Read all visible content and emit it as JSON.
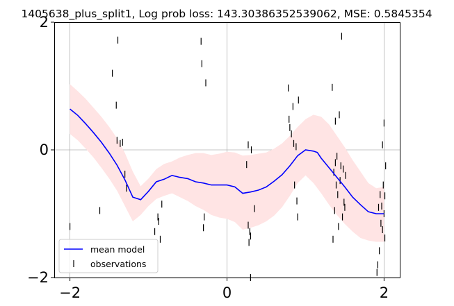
{
  "chart_data": {
    "type": "line",
    "title": "1405638_plus_split1, Log prob loss: 143.30386352539062, MSE: 0.5845354",
    "xlabel": "",
    "ylabel": "",
    "xlim": [
      -2.2,
      2.2
    ],
    "ylim": [
      -2,
      2
    ],
    "x_ticks": [
      -2,
      0,
      2
    ],
    "y_ticks": [
      -2,
      0,
      2
    ],
    "x_tick_labels": [
      "−2",
      "0",
      "2"
    ],
    "y_tick_labels": [
      "−2",
      "0",
      "2"
    ],
    "grid": true,
    "legend": {
      "placement": "lower-left",
      "entries": [
        {
          "label": "mean model",
          "marker": "line"
        },
        {
          "label": "observations",
          "marker": "vline"
        }
      ]
    },
    "colors": {
      "mean": "#0000ff",
      "band": "#ffe4e4",
      "observations": "#000000",
      "grid": "#b0b0b0"
    },
    "series": [
      {
        "name": "mean model",
        "x": [
          -2.0,
          -1.9,
          -1.8,
          -1.7,
          -1.6,
          -1.5,
          -1.4,
          -1.3,
          -1.2,
          -1.1,
          -1.0,
          -0.9,
          -0.8,
          -0.7,
          -0.6,
          -0.5,
          -0.4,
          -0.3,
          -0.2,
          -0.1,
          0.0,
          0.1,
          0.2,
          0.3,
          0.4,
          0.5,
          0.6,
          0.7,
          0.8,
          0.9,
          1.0,
          1.1,
          1.15,
          1.2,
          1.3,
          1.4,
          1.5,
          1.6,
          1.7,
          1.8,
          1.9,
          2.0
        ],
        "y": [
          0.64,
          0.54,
          0.41,
          0.27,
          0.12,
          -0.05,
          -0.24,
          -0.47,
          -0.74,
          -0.78,
          -0.65,
          -0.5,
          -0.46,
          -0.4,
          -0.43,
          -0.45,
          -0.5,
          -0.52,
          -0.55,
          -0.55,
          -0.55,
          -0.58,
          -0.68,
          -0.66,
          -0.63,
          -0.58,
          -0.49,
          -0.39,
          -0.25,
          -0.09,
          0.0,
          -0.02,
          -0.04,
          -0.13,
          -0.28,
          -0.43,
          -0.58,
          -0.74,
          -0.86,
          -0.97,
          -1.0,
          -1.0
        ]
      }
    ],
    "band": {
      "x": [
        -2.0,
        -1.9,
        -1.8,
        -1.7,
        -1.6,
        -1.5,
        -1.4,
        -1.3,
        -1.2,
        -1.1,
        -1.0,
        -0.9,
        -0.8,
        -0.7,
        -0.6,
        -0.5,
        -0.4,
        -0.3,
        -0.2,
        -0.1,
        0.0,
        0.1,
        0.2,
        0.3,
        0.4,
        0.5,
        0.6,
        0.7,
        0.8,
        0.9,
        1.0,
        1.1,
        1.2,
        1.3,
        1.4,
        1.5,
        1.6,
        1.7,
        1.8,
        1.9,
        2.0
      ],
      "upper": [
        1.03,
        0.92,
        0.8,
        0.66,
        0.52,
        0.36,
        0.18,
        -0.05,
        -0.34,
        -0.57,
        -0.45,
        -0.3,
        -0.22,
        -0.18,
        -0.12,
        -0.08,
        -0.05,
        -0.05,
        -0.08,
        -0.06,
        -0.03,
        -0.04,
        -0.09,
        -0.08,
        -0.06,
        -0.04,
        0.02,
        0.1,
        0.22,
        0.36,
        0.48,
        0.55,
        0.52,
        0.4,
        0.22,
        0.04,
        -0.16,
        -0.34,
        -0.52,
        -0.6,
        -0.58
      ],
      "lower": [
        0.25,
        0.15,
        0.02,
        -0.12,
        -0.28,
        -0.45,
        -0.64,
        -0.88,
        -1.12,
        -1.02,
        -0.88,
        -0.77,
        -0.72,
        -0.68,
        -0.74,
        -0.8,
        -0.88,
        -0.94,
        -1.02,
        -1.06,
        -1.08,
        -1.13,
        -1.25,
        -1.22,
        -1.18,
        -1.12,
        -1.03,
        -0.9,
        -0.72,
        -0.52,
        -0.4,
        -0.52,
        -0.68,
        -0.86,
        -1.02,
        -1.16,
        -1.28,
        -1.38,
        -1.42,
        -1.44,
        -1.44
      ]
    },
    "observations": {
      "x": [
        -2.0,
        -1.62,
        -1.46,
        -1.41,
        -1.4,
        -1.39,
        -1.36,
        -1.33,
        -1.3,
        -1.28,
        -0.92,
        -0.88,
        -0.87,
        -0.85,
        -0.83,
        -0.33,
        -0.32,
        -0.3,
        -0.29,
        -0.27,
        0.25,
        0.27,
        0.27,
        0.28,
        0.29,
        0.3,
        0.3,
        0.31,
        0.35,
        0.78,
        0.79,
        0.8,
        0.82,
        0.84,
        0.85,
        0.86,
        0.88,
        0.89,
        0.9,
        0.91,
        1.34,
        1.35,
        1.36,
        1.37,
        1.38,
        1.38,
        1.39,
        1.4,
        1.41,
        1.42,
        1.43,
        1.44,
        1.45,
        1.46,
        1.47,
        1.48,
        1.49,
        1.5,
        1.51,
        1.93,
        1.94,
        1.95,
        1.96,
        1.97,
        1.98,
        1.98,
        1.99,
        2.0,
        2.0,
        2.01,
        2.01,
        2.02,
        1.92,
        1.91
      ],
      "y": [
        -1.2,
        -0.95,
        1.2,
        0.7,
        0.15,
        1.72,
        0.1,
        0.12,
        -0.38,
        -0.6,
        -1.28,
        -1.05,
        -1.12,
        -1.4,
        -0.85,
        1.7,
        1.35,
        -1.22,
        -1.05,
        1.05,
        -0.23,
        0.08,
        -1.18,
        -1.45,
        -1.28,
        -1.35,
        -2.0,
        0.0,
        -0.92,
        0.97,
        0.48,
        0.35,
        0.25,
        0.68,
        0.1,
        -0.55,
        0.05,
        -0.8,
        -1.05,
        0.78,
        0.98,
        -1.4,
        -0.35,
        -0.95,
        -0.2,
        0.45,
        -0.55,
        -0.1,
        -0.7,
        -1.2,
        0.55,
        -0.48,
        -0.25,
        1.78,
        -1.05,
        -0.3,
        -0.82,
        -0.9,
        -0.4,
        -0.9,
        -1.58,
        -0.7,
        -1.15,
        -0.88,
        -1.25,
        0.08,
        -0.55,
        -1.0,
        0.42,
        -1.38,
        -0.72,
        -0.25,
        -1.8,
        -1.92
      ]
    }
  }
}
